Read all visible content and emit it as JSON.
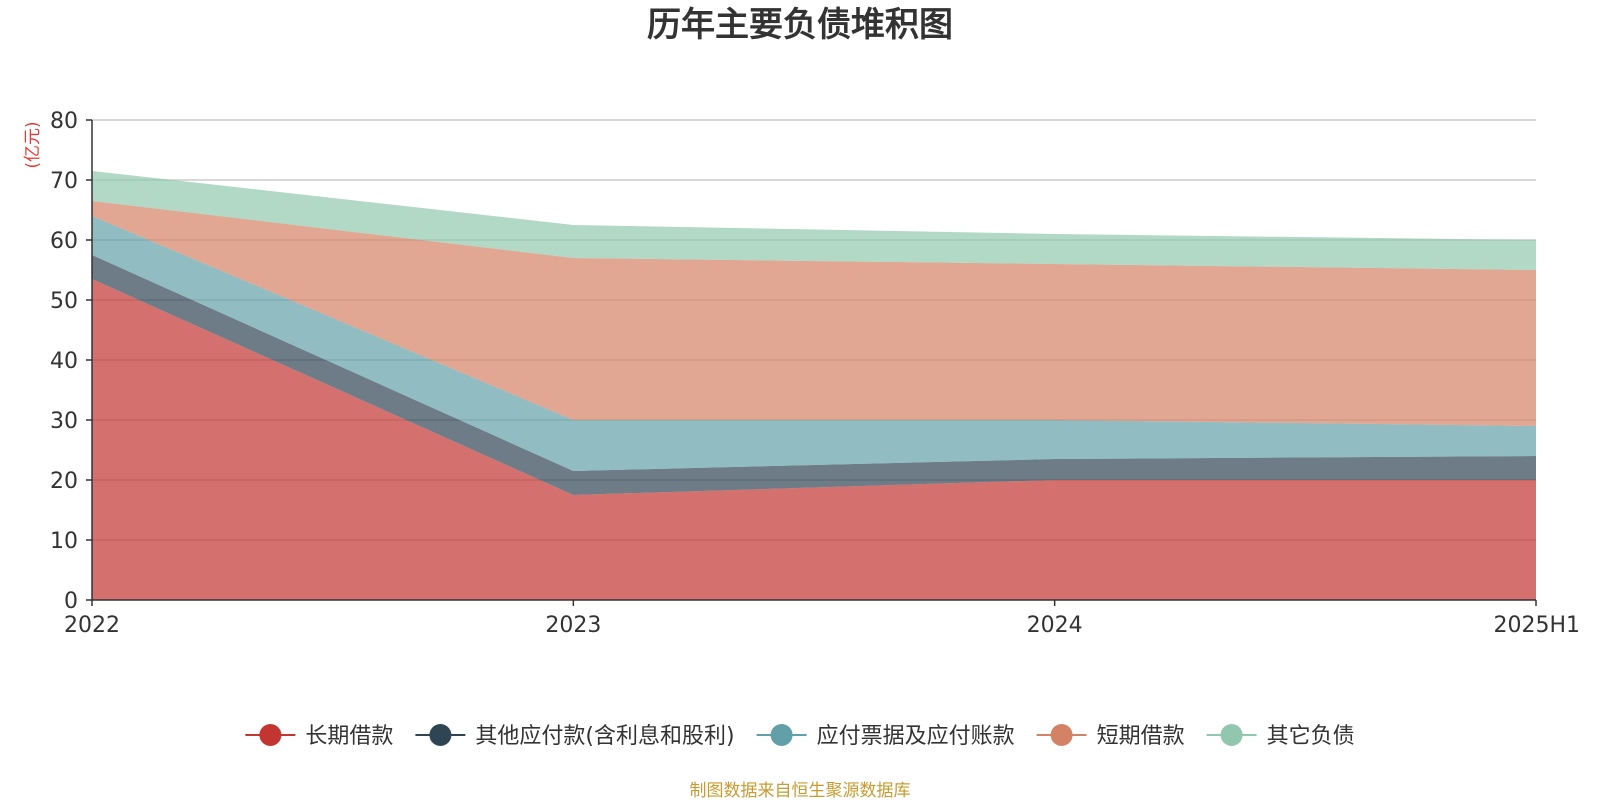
{
  "colors": {
    "unit_label": "#e53935",
    "source_text": "#c89b32"
  },
  "chart_data": {
    "type": "area",
    "stacked": true,
    "title": "历年主要负债堆积图",
    "unit": "(亿元)",
    "x": [
      "2022",
      "2023",
      "2024",
      "2025H1"
    ],
    "ylim": [
      0,
      80
    ],
    "yticks": [
      "0",
      "10",
      "20",
      "30",
      "40",
      "50",
      "60",
      "70",
      "80"
    ],
    "grid": true,
    "legend_position": "bottom",
    "series": [
      {
        "name": "长期借款",
        "values": [
          53.5,
          17.5,
          20.0,
          20.0
        ],
        "color": "#c23531"
      },
      {
        "name": "其他应付款(含利息和股利)",
        "values": [
          4.0,
          4.0,
          3.5,
          4.0
        ],
        "color": "#2f4554"
      },
      {
        "name": "应付票据及应付账款",
        "values": [
          6.5,
          8.5,
          6.5,
          5.0
        ],
        "color": "#61a0a8"
      },
      {
        "name": "短期借款",
        "values": [
          2.5,
          27.0,
          26.0,
          26.0
        ],
        "color": "#d48265"
      },
      {
        "name": "其它负债",
        "values": [
          5.0,
          5.5,
          5.0,
          5.0
        ],
        "color": "#91c7ae"
      }
    ],
    "source": "制图数据来自恒生聚源数据库"
  }
}
